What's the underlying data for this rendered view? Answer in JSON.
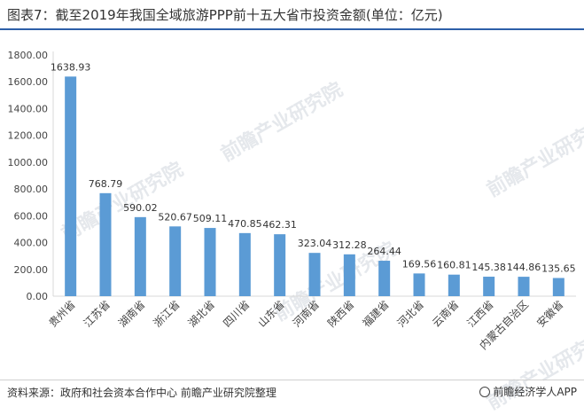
{
  "header": {
    "title": "图表7：截至2019年我国全域旅游PPP前十五大省市投资金额(单位：亿元)"
  },
  "footer": {
    "source": "资料来源：政府和社会资本合作中心 前瞻产业研究院整理",
    "brand": "前瞻经济学人APP"
  },
  "watermark": {
    "text": "前瞻产业研究院"
  },
  "colors": {
    "bar": "#5b9bd5",
    "accent": "#2d5fa8"
  },
  "chart_data": {
    "type": "bar",
    "title": "",
    "xlabel": "",
    "ylabel": "",
    "ylim": [
      0,
      1800
    ],
    "yticks": [
      "0.00",
      "200.00",
      "400.00",
      "600.00",
      "800.00",
      "1000.00",
      "1200.00",
      "1400.00",
      "1600.00",
      "1800.00"
    ],
    "grid": false,
    "categories": [
      "贵州省",
      "江苏省",
      "湖南省",
      "浙江省",
      "湖北省",
      "四川省",
      "山东省",
      "河南省",
      "陕西省",
      "福建省",
      "河北省",
      "云南省",
      "江西省",
      "内蒙古自治区",
      "安徽省"
    ],
    "values": [
      1638.93,
      768.79,
      590.02,
      520.67,
      509.11,
      470.85,
      462.31,
      323.04,
      312.28,
      264.44,
      169.56,
      160.81,
      145.38,
      144.86,
      135.65
    ],
    "value_labels": [
      "1638.93",
      "768.79",
      "590.02",
      "520.67",
      "509.11",
      "470.85",
      "462.31",
      "323.04",
      "312.28",
      "264.44",
      "169.56",
      "160.81",
      "145.38",
      "144.86",
      "135.65"
    ]
  }
}
